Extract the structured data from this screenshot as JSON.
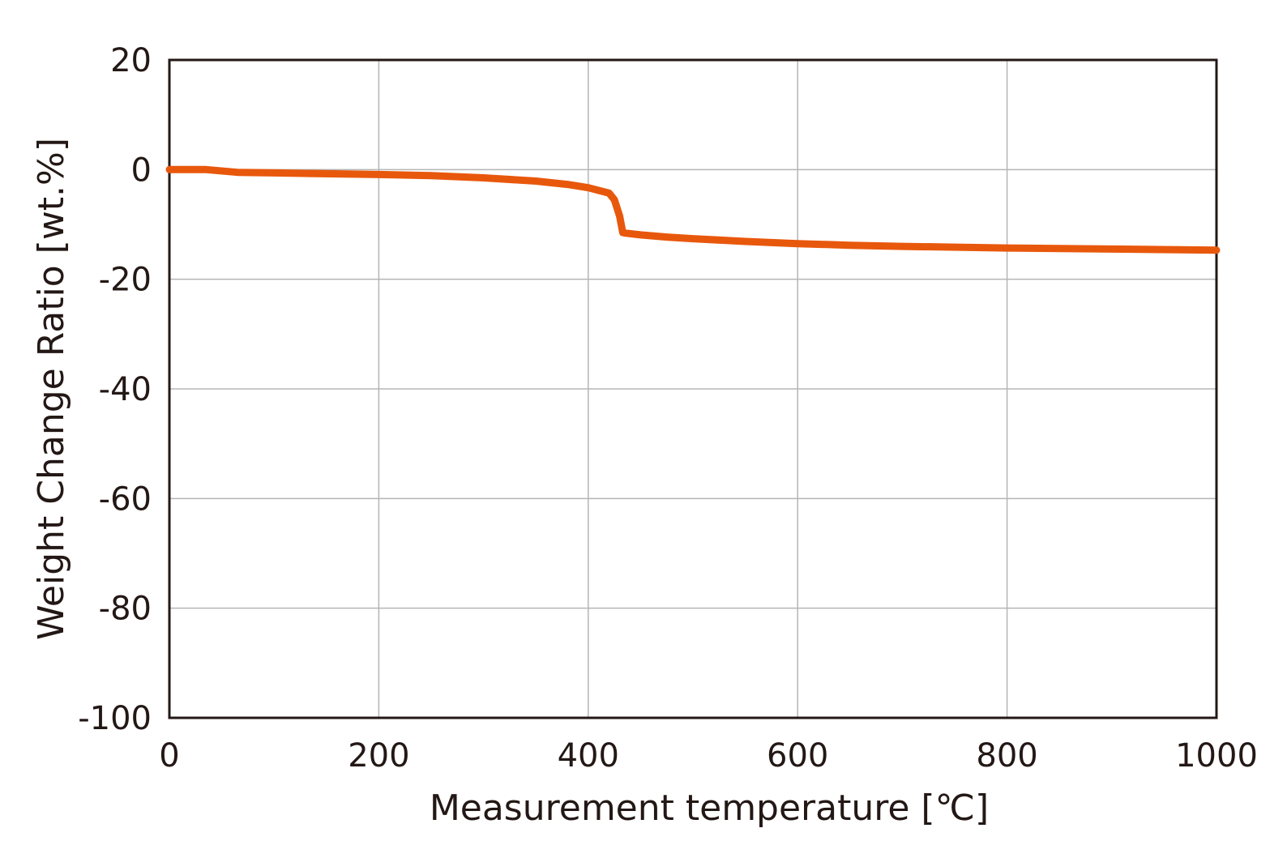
{
  "chart_data": {
    "type": "line",
    "title": "",
    "xlabel": "Measurement temperature [℃]",
    "ylabel": "Weight Change Ratio [wt.%]",
    "xlim": [
      0,
      1000
    ],
    "ylim": [
      -100,
      20
    ],
    "xticks": [
      0,
      200,
      400,
      600,
      800,
      1000
    ],
    "yticks": [
      20,
      0,
      -20,
      -40,
      -60,
      -80,
      -100
    ],
    "x_tick_labels": [
      "0",
      "200",
      "400",
      "600",
      "800",
      "1000"
    ],
    "y_tick_labels": [
      "20",
      "0",
      "-20",
      "-40",
      "-60",
      "-80",
      "-100"
    ],
    "grid": true,
    "legend": "none",
    "series": [
      {
        "color": "#e8580c",
        "x": [
          0,
          35,
          65,
          100,
          200,
          250,
          300,
          350,
          380,
          400,
          420,
          425,
          430,
          433,
          436,
          450,
          475,
          500,
          550,
          600,
          650,
          700,
          800,
          900,
          1000
        ],
        "y": [
          0,
          0,
          -0.5,
          -0.6,
          -0.9,
          -1.1,
          -1.5,
          -2.1,
          -2.7,
          -3.3,
          -4.3,
          -5.5,
          -8.5,
          -11.5,
          -11.6,
          -11.9,
          -12.3,
          -12.6,
          -13.1,
          -13.5,
          -13.8,
          -14.0,
          -14.3,
          -14.5,
          -14.7
        ]
      }
    ]
  }
}
